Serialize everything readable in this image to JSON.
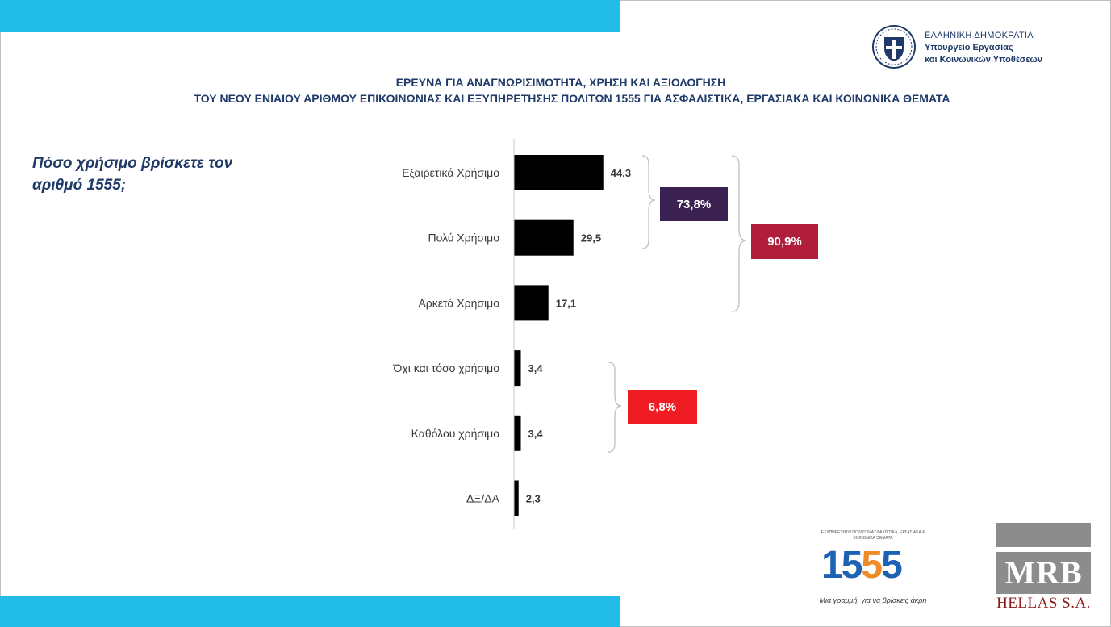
{
  "header": {
    "ministry_line1": "ΕΛΛΗΝΙΚΗ ΔΗΜΟΚΡΑΤΙΑ",
    "ministry_line2": "Υπουργείο Εργασίας",
    "ministry_line3": "και Κοινωνικών Υποθέσεων",
    "title_line1": "ΕΡΕΥΝΑ ΓΙΑ ΑΝΑΓΝΩΡΙΣΙΜΟΤΗΤΑ, ΧΡΗΣΗ ΚΑΙ ΑΞΙΟΛΟΓΗΣΗ",
    "title_line2": "ΤΟΥ ΝΕΟΥ ΕΝΙΑΙΟΥ ΑΡΙΘΜΟΥ ΕΠΙΚΟΙΝΩΝΙΑΣ ΚΑΙ ΕΞΥΠΗΡΕΤΗΣΗΣ ΠΟΛΙΤΩΝ 1555  ΓΙΑ ΑΣΦΑΛΙΣΤΙΚΑ, ΕΡΓΑΣΙΑΚΑ ΚΑΙ ΚΟΙΝΩΝΙΚΑ ΘΕΜΑΤΑ"
  },
  "question": "Πόσο χρήσιμο βρίσκετε τον αριθμό 1555;",
  "chart_data": {
    "type": "bar",
    "orientation": "horizontal",
    "categories": [
      "Εξαιρετικά Χρήσιμο",
      "Πολύ Χρήσιμο",
      "Αρκετά Χρήσιμο",
      "Όχι και τόσο χρήσιμο",
      "Καθόλου χρήσιμο",
      "ΔΞ/ΔΑ"
    ],
    "values": [
      44.3,
      29.5,
      17.1,
      3.4,
      3.4,
      2.3
    ],
    "value_labels": [
      "44,3",
      "29,5",
      "17,1",
      "3,4",
      "3,4",
      "2,3"
    ],
    "bar_color": "#000000",
    "xlim": [
      0,
      100
    ],
    "grid": false,
    "annotations": [
      {
        "text": "73,8%",
        "covers": [
          "Εξαιρετικά Χρήσιμο",
          "Πολύ Χρήσιμο"
        ],
        "color": "#3a2151"
      },
      {
        "text": "90,9%",
        "covers": [
          "Εξαιρετικά Χρήσιμο",
          "Πολύ Χρήσιμο",
          "Αρκετά Χρήσιμο"
        ],
        "color": "#b01e3c"
      },
      {
        "text": "6,8%",
        "covers": [
          "Όχι και τόσο χρήσιμο",
          "Καθόλου χρήσιμο"
        ],
        "color": "#ef1c24"
      }
    ]
  },
  "footer": {
    "logo_1555_top": "ΕΞΥΠΗΡΕΤΗΣΗ ΠΟΛΙΤΩΝ ΑΣΦΑΛΙΣΤΙΚΑ, ΕΡΓΑΣΙΑΚΑ & ΚΟΙΝΩΝΙΚΑ ΘΕΜΑΤΑ",
    "logo_1555_number_a": "15",
    "logo_1555_number_b": "5",
    "logo_1555_number_c": "5",
    "logo_1555_tagline": "Μια γραμμή, για να βρίσκεις άκρη",
    "mrb_main": "MRB",
    "mrb_sub": "HELLAS S.A."
  },
  "colors": {
    "accent_bar": "#22bde6",
    "title_text": "#1f3a68"
  }
}
